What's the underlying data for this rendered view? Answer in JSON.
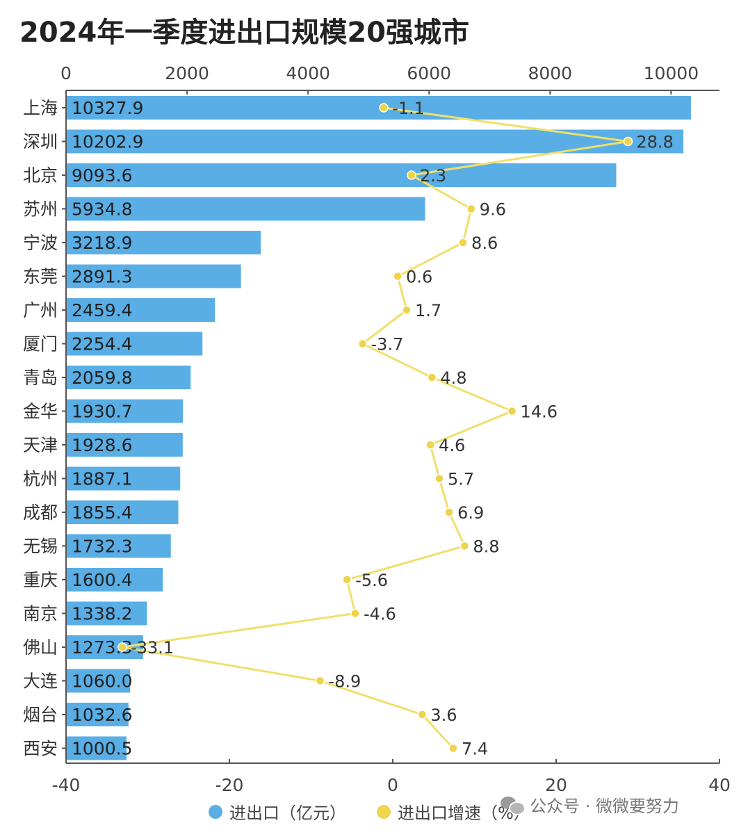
{
  "title": "2024年一季度进出口规模20强城市",
  "legend": {
    "bar_series": "进出口（亿元）",
    "line_series": "进出口增速（%）"
  },
  "watermark": {
    "icon": "wechat-icon",
    "text": "公众号 · 微微要努力"
  },
  "colors": {
    "bar": "#5aaee6",
    "line": "#f2df6b",
    "point": "#efd34a",
    "axis": "#555555"
  },
  "chart_data": {
    "type": "bar",
    "orientation": "horizontal",
    "title": "2024年一季度进出口规模20强城市",
    "categories": [
      "上海",
      "深圳",
      "北京",
      "苏州",
      "宁波",
      "东莞",
      "广州",
      "厦门",
      "青岛",
      "金华",
      "天津",
      "杭州",
      "成都",
      "无锡",
      "重庆",
      "南京",
      "佛山",
      "大连",
      "烟台",
      "西安"
    ],
    "series": [
      {
        "name": "进出口（亿元）",
        "type": "bar",
        "axis": "top",
        "values": [
          10327.9,
          10202.9,
          9093.6,
          5934.8,
          3218.9,
          2891.3,
          2459.4,
          2254.4,
          2059.8,
          1930.7,
          1928.6,
          1887.1,
          1855.4,
          1732.3,
          1600.4,
          1338.2,
          1273.3,
          1060.0,
          1032.6,
          1000.5
        ],
        "value_labels": [
          "10327.9",
          "10202.9",
          "9093.6",
          "5934.8",
          "3218.9",
          "2891.3",
          "2459.4",
          "2254.4",
          "2059.8",
          "1930.7",
          "1928.6",
          "1887.1",
          "1855.4",
          "1732.3",
          "1600.4",
          "1338.2",
          "1273.3",
          "1060.0",
          "1032.6",
          "1000.5"
        ]
      },
      {
        "name": "进出口增速（%）",
        "type": "line",
        "axis": "bottom",
        "values": [
          -1.1,
          28.8,
          2.3,
          9.6,
          8.6,
          0.6,
          1.7,
          -3.7,
          4.8,
          14.6,
          4.6,
          5.7,
          6.9,
          8.8,
          -5.6,
          -4.6,
          -33.1,
          -8.9,
          3.6,
          7.4
        ],
        "value_labels": [
          "-1.1",
          "28.8",
          "2.3",
          "9.6",
          "8.6",
          "0.6",
          "1.7",
          "-3.7",
          "4.8",
          "14.6",
          "4.6",
          "5.7",
          "6.9",
          "8.8",
          "-5.6",
          "-4.6",
          "-33.1",
          "-8.9",
          "3.6",
          "7.4"
        ]
      }
    ],
    "top_axis": {
      "ticks": [
        "0",
        "2000",
        "4000",
        "6000",
        "8000",
        "10000"
      ],
      "range": [
        0,
        10800
      ]
    },
    "bottom_axis": {
      "ticks": [
        "-40",
        "-20",
        "0",
        "20",
        "40"
      ],
      "range": [
        -40,
        40
      ]
    },
    "legend_position": "bottom-center",
    "grid": false
  }
}
